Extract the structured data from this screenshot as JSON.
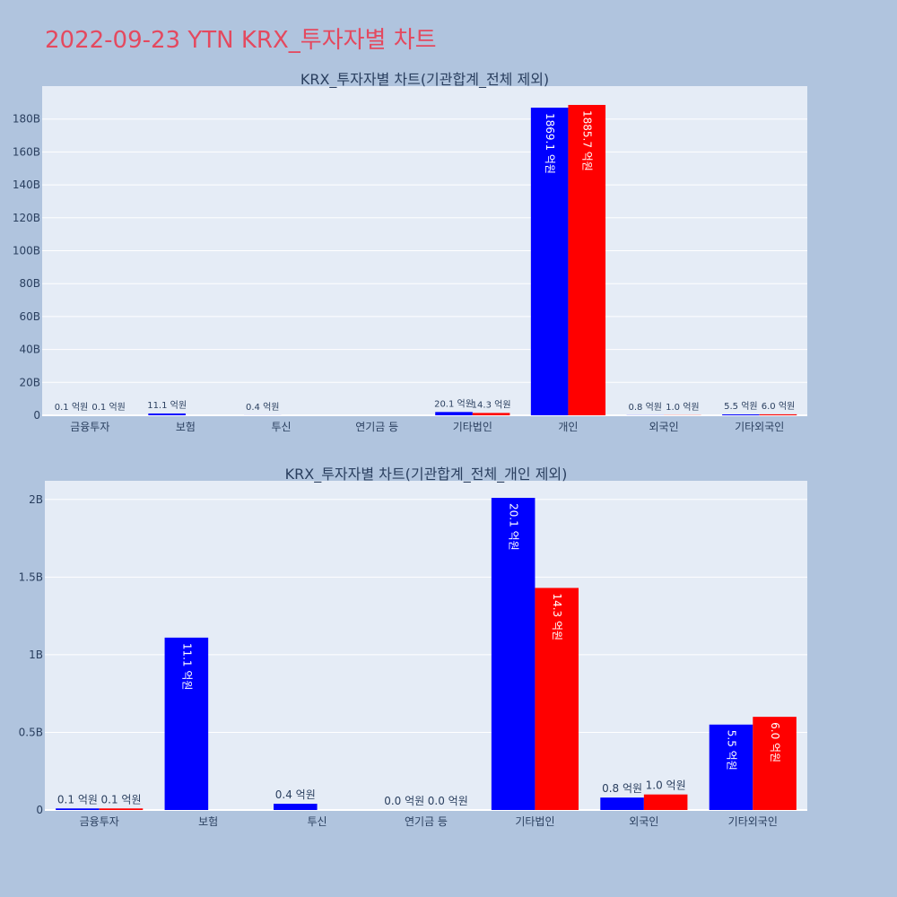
{
  "page_title": "2022-09-23 YTN KRX_투자자별 차트",
  "colors": {
    "series_a": "#0000ff",
    "series_b": "#ff0000",
    "plot_bg": "#e5ecf6",
    "paper_bg": "#b0c4de",
    "title": "#e4495f"
  },
  "chart_data": [
    {
      "type": "bar",
      "title": "KRX_투자자별 차트(기관합계_전체 제외)",
      "categories": [
        "금융투자",
        "보험",
        "투신",
        "연기금 등",
        "기타법인",
        "개인",
        "외국인",
        "기타외국인"
      ],
      "yticks": [
        "0",
        "20B",
        "40B",
        "60B",
        "80B",
        "100B",
        "120B",
        "140B",
        "160B",
        "180B"
      ],
      "ylim": [
        0,
        200
      ],
      "yunit": "B",
      "grid": true,
      "series": [
        {
          "values": [
            0.01,
            1.11,
            0.04,
            0,
            2.01,
            186.91,
            0.08,
            0.55
          ],
          "labels": [
            "0.1 억원",
            "11.1 억원",
            "0.4 억원",
            "",
            "20.1 억원",
            "1869.1 억원",
            "0.8 억원",
            "5.5 억원"
          ]
        },
        {
          "values": [
            0.01,
            0,
            0,
            0,
            1.43,
            188.57,
            0.1,
            0.6
          ],
          "labels": [
            "0.1 억원",
            "",
            "",
            "",
            "14.3 억원",
            "1885.7 억원",
            "1.0 억원",
            "6.0 억원"
          ]
        }
      ]
    },
    {
      "type": "bar",
      "title": "KRX_투자자별 차트(기관합계_전체_개인 제외)",
      "categories": [
        "금융투자",
        "보험",
        "투신",
        "연기금 등",
        "기타법인",
        "외국인",
        "기타외국인"
      ],
      "yticks": [
        "0",
        "0.5B",
        "1B",
        "1.5B",
        "2B"
      ],
      "ylim": [
        0,
        2.12
      ],
      "yunit": "B",
      "grid": true,
      "series": [
        {
          "values": [
            0.01,
            1.11,
            0.04,
            0.0,
            2.01,
            0.08,
            0.55
          ],
          "labels": [
            "0.1 억원",
            "11.1 억원",
            "0.4 억원",
            "0.0 억원",
            "20.1 억원",
            "0.8 억원",
            "5.5 억원"
          ]
        },
        {
          "values": [
            0.01,
            0,
            0,
            0.0,
            1.43,
            0.1,
            0.6
          ],
          "labels": [
            "0.1 억원",
            "",
            "",
            "0.0 억원",
            "14.3 억원",
            "1.0 억원",
            "6.0 억원"
          ]
        }
      ]
    }
  ]
}
